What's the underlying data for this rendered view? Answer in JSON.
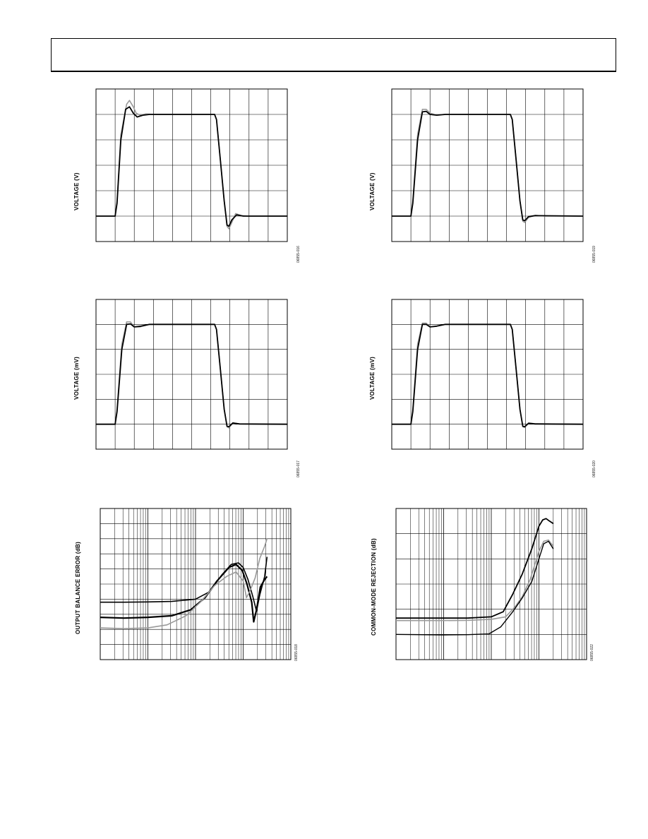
{
  "page": {
    "header_text": ""
  },
  "chart_data": [
    {
      "type": "line",
      "ylabel": "VOLTAGE (V)",
      "figure_id": "06855-016",
      "scale": "linear",
      "x_divisions": 10,
      "y_divisions": 6,
      "grid": true,
      "series": [
        {
          "color": "#9a9a9a",
          "width": 1.6,
          "values": [
            [
              0,
              1
            ],
            [
              1,
              1
            ],
            [
              1.1,
              1.6
            ],
            [
              1.3,
              4.2
            ],
            [
              1.6,
              5.4
            ],
            [
              1.75,
              5.55
            ],
            [
              1.95,
              5.3
            ],
            [
              2.1,
              5.05
            ],
            [
              2.3,
              4.97
            ],
            [
              2.6,
              5.02
            ],
            [
              3,
              5
            ],
            [
              6.2,
              5
            ],
            [
              6.3,
              4.8
            ],
            [
              6.5,
              3.2
            ],
            [
              6.7,
              1.6
            ],
            [
              6.85,
              0.6
            ],
            [
              6.95,
              0.5
            ],
            [
              7.1,
              0.75
            ],
            [
              7.3,
              1.1
            ],
            [
              7.6,
              1.02
            ],
            [
              8,
              1
            ],
            [
              10,
              1
            ]
          ]
        },
        {
          "color": "#000000",
          "width": 1.8,
          "values": [
            [
              0,
              1
            ],
            [
              1,
              1
            ],
            [
              1.1,
              1.5
            ],
            [
              1.3,
              4.0
            ],
            [
              1.55,
              5.2
            ],
            [
              1.75,
              5.3
            ],
            [
              1.95,
              5.05
            ],
            [
              2.15,
              4.9
            ],
            [
              2.45,
              4.97
            ],
            [
              2.8,
              5.0
            ],
            [
              6.2,
              5
            ],
            [
              6.3,
              4.8
            ],
            [
              6.5,
              3.2
            ],
            [
              6.7,
              1.6
            ],
            [
              6.85,
              0.65
            ],
            [
              6.95,
              0.6
            ],
            [
              7.1,
              0.85
            ],
            [
              7.35,
              1.05
            ],
            [
              7.7,
              1.0
            ],
            [
              10,
              1
            ]
          ]
        }
      ]
    },
    {
      "type": "line",
      "ylabel": "VOLTAGE (V)",
      "figure_id": "06855-019",
      "scale": "linear",
      "x_divisions": 10,
      "y_divisions": 6,
      "grid": true,
      "series": [
        {
          "color": "#9a9a9a",
          "width": 1.6,
          "values": [
            [
              0,
              1
            ],
            [
              1,
              1
            ],
            [
              1.1,
              1.6
            ],
            [
              1.35,
              4.2
            ],
            [
              1.6,
              5.2
            ],
            [
              1.8,
              5.2
            ],
            [
              2.0,
              5.05
            ],
            [
              2.3,
              4.98
            ],
            [
              2.8,
              5.0
            ],
            [
              6.2,
              5
            ],
            [
              6.3,
              4.8
            ],
            [
              6.5,
              3.2
            ],
            [
              6.7,
              1.6
            ],
            [
              6.85,
              0.8
            ],
            [
              6.95,
              0.75
            ],
            [
              7.15,
              0.95
            ],
            [
              7.5,
              1.03
            ],
            [
              8,
              1
            ],
            [
              10,
              1
            ]
          ]
        },
        {
          "color": "#000000",
          "width": 1.8,
          "values": [
            [
              0,
              1
            ],
            [
              1,
              1
            ],
            [
              1.1,
              1.5
            ],
            [
              1.35,
              4.0
            ],
            [
              1.6,
              5.1
            ],
            [
              1.8,
              5.12
            ],
            [
              2.0,
              5.0
            ],
            [
              2.35,
              4.97
            ],
            [
              2.8,
              5.0
            ],
            [
              6.2,
              5
            ],
            [
              6.3,
              4.8
            ],
            [
              6.5,
              3.2
            ],
            [
              6.7,
              1.6
            ],
            [
              6.85,
              0.85
            ],
            [
              6.95,
              0.82
            ],
            [
              7.15,
              0.98
            ],
            [
              7.5,
              1.02
            ],
            [
              10,
              1
            ]
          ]
        }
      ]
    },
    {
      "type": "line",
      "ylabel": "VOLTAGE (mV)",
      "figure_id": "06855-017",
      "scale": "linear",
      "x_divisions": 10,
      "y_divisions": 6,
      "grid": true,
      "series": [
        {
          "color": "#9a9a9a",
          "width": 1.6,
          "values": [
            [
              0,
              1
            ],
            [
              1,
              1
            ],
            [
              1.1,
              1.6
            ],
            [
              1.35,
              4.2
            ],
            [
              1.6,
              5.1
            ],
            [
              1.8,
              5.1
            ],
            [
              2.0,
              4.9
            ],
            [
              2.3,
              4.9
            ],
            [
              2.8,
              5.0
            ],
            [
              6.2,
              5
            ],
            [
              6.3,
              4.8
            ],
            [
              6.5,
              3.2
            ],
            [
              6.7,
              1.6
            ],
            [
              6.85,
              0.9
            ],
            [
              6.95,
              0.85
            ],
            [
              7.15,
              1.05
            ],
            [
              7.5,
              1.02
            ],
            [
              10,
              1
            ]
          ]
        },
        {
          "color": "#000000",
          "width": 1.8,
          "values": [
            [
              0,
              1
            ],
            [
              1,
              1
            ],
            [
              1.1,
              1.5
            ],
            [
              1.35,
              4.0
            ],
            [
              1.6,
              5.0
            ],
            [
              1.8,
              5.02
            ],
            [
              2.0,
              4.9
            ],
            [
              2.35,
              4.93
            ],
            [
              2.8,
              5.0
            ],
            [
              6.2,
              5
            ],
            [
              6.3,
              4.8
            ],
            [
              6.5,
              3.2
            ],
            [
              6.7,
              1.6
            ],
            [
              6.85,
              0.92
            ],
            [
              6.95,
              0.9
            ],
            [
              7.15,
              1.05
            ],
            [
              7.5,
              1.01
            ],
            [
              10,
              1
            ]
          ]
        }
      ]
    },
    {
      "type": "line",
      "ylabel": "VOLTAGE (mV)",
      "figure_id": "06855-020",
      "scale": "linear",
      "x_divisions": 10,
      "y_divisions": 6,
      "grid": true,
      "series": [
        {
          "color": "#9a9a9a",
          "width": 1.6,
          "values": [
            [
              0,
              1
            ],
            [
              1,
              1
            ],
            [
              1.1,
              1.6
            ],
            [
              1.35,
              4.2
            ],
            [
              1.6,
              5.05
            ],
            [
              1.8,
              5.05
            ],
            [
              2.0,
              4.9
            ],
            [
              2.3,
              4.92
            ],
            [
              2.8,
              5.0
            ],
            [
              6.2,
              5
            ],
            [
              6.3,
              4.8
            ],
            [
              6.5,
              3.2
            ],
            [
              6.7,
              1.6
            ],
            [
              6.85,
              0.9
            ],
            [
              6.95,
              0.87
            ],
            [
              7.15,
              1.05
            ],
            [
              7.5,
              1.02
            ],
            [
              10,
              1
            ]
          ]
        },
        {
          "color": "#000000",
          "width": 1.8,
          "values": [
            [
              0,
              1
            ],
            [
              1,
              1
            ],
            [
              1.1,
              1.5
            ],
            [
              1.35,
              4.0
            ],
            [
              1.6,
              5.0
            ],
            [
              1.8,
              5.0
            ],
            [
              2.0,
              4.9
            ],
            [
              2.35,
              4.93
            ],
            [
              2.8,
              5.0
            ],
            [
              6.2,
              5
            ],
            [
              6.3,
              4.8
            ],
            [
              6.5,
              3.2
            ],
            [
              6.7,
              1.6
            ],
            [
              6.85,
              0.92
            ],
            [
              6.95,
              0.9
            ],
            [
              7.15,
              1.04
            ],
            [
              7.5,
              1.01
            ],
            [
              10,
              1
            ]
          ]
        }
      ]
    },
    {
      "type": "line",
      "ylabel": "OUTPUT BALANCE ERROR (dB)",
      "figure_id": "06855-018",
      "scale": "log-x",
      "x_decades": 4,
      "y_divisions": 10,
      "grid": true,
      "series": [
        {
          "color": "#000000",
          "width": 1.6,
          "values": [
            [
              0,
              3.8
            ],
            [
              0.5,
              3.8
            ],
            [
              1,
              3.82
            ],
            [
              1.5,
              3.85
            ],
            [
              2.0,
              4.0
            ],
            [
              2.3,
              4.5
            ],
            [
              2.55,
              5.6
            ],
            [
              2.75,
              6.3
            ],
            [
              2.9,
              6.4
            ],
            [
              3.0,
              6.1
            ],
            [
              3.1,
              5.3
            ],
            [
              3.2,
              4.2
            ],
            [
              3.28,
              3.2
            ],
            [
              3.35,
              4.3
            ],
            [
              3.45,
              5.5
            ],
            [
              3.5,
              6.8
            ]
          ]
        },
        {
          "color": "#000000",
          "width": 2.2,
          "values": [
            [
              0,
              2.8
            ],
            [
              0.5,
              2.75
            ],
            [
              1.0,
              2.8
            ],
            [
              1.5,
              2.9
            ],
            [
              1.9,
              3.3
            ],
            [
              2.2,
              4.1
            ],
            [
              2.45,
              5.2
            ],
            [
              2.7,
              6.1
            ],
            [
              2.85,
              6.3
            ],
            [
              2.98,
              5.9
            ],
            [
              3.08,
              5.0
            ],
            [
              3.18,
              3.8
            ],
            [
              3.22,
              2.5
            ],
            [
              3.28,
              3.3
            ],
            [
              3.36,
              4.8
            ],
            [
              3.45,
              5.3
            ],
            [
              3.5,
              5.5
            ]
          ]
        },
        {
          "color": "#9a9a9a",
          "width": 1.6,
          "values": [
            [
              0,
              2.1
            ],
            [
              0.5,
              2.05
            ],
            [
              1.0,
              2.1
            ],
            [
              1.4,
              2.3
            ],
            [
              1.8,
              2.9
            ],
            [
              2.1,
              3.8
            ],
            [
              2.4,
              4.9
            ],
            [
              2.65,
              5.5
            ],
            [
              2.85,
              5.8
            ],
            [
              3.0,
              5.2
            ],
            [
              3.07,
              4.1
            ],
            [
              3.15,
              4.6
            ],
            [
              3.25,
              5.4
            ],
            [
              3.35,
              6.7
            ],
            [
              3.45,
              7.5
            ],
            [
              3.5,
              8.0
            ]
          ]
        }
      ]
    },
    {
      "type": "line",
      "ylabel": "COMMON-MODE REJECTION (dB)",
      "figure_id": "06855-022",
      "scale": "log-x",
      "x_decades": 4,
      "y_divisions": 6,
      "grid": true,
      "series": [
        {
          "color": "#000000",
          "width": 1.8,
          "values": [
            [
              0,
              1.65
            ],
            [
              1,
              1.65
            ],
            [
              1.5,
              1.65
            ],
            [
              2.0,
              1.7
            ],
            [
              2.25,
              1.9
            ],
            [
              2.45,
              2.6
            ],
            [
              2.65,
              3.4
            ],
            [
              2.85,
              4.4
            ],
            [
              3.0,
              5.3
            ],
            [
              3.08,
              5.55
            ],
            [
              3.15,
              5.6
            ],
            [
              3.22,
              5.5
            ],
            [
              3.3,
              5.4
            ]
          ]
        },
        {
          "color": "#9a9a9a",
          "width": 1.6,
          "values": [
            [
              0,
              1.55
            ],
            [
              1,
              1.55
            ],
            [
              1.5,
              1.56
            ],
            [
              2.0,
              1.6
            ],
            [
              2.3,
              1.7
            ],
            [
              2.5,
              2.1
            ],
            [
              2.65,
              2.5
            ],
            [
              2.82,
              3.2
            ],
            [
              3.0,
              4.3
            ],
            [
              3.1,
              4.7
            ],
            [
              3.2,
              4.75
            ],
            [
              3.3,
              4.5
            ]
          ]
        },
        {
          "color": "#000000",
          "width": 1.4,
          "values": [
            [
              0,
              1.0
            ],
            [
              1.0,
              0.98
            ],
            [
              1.5,
              0.99
            ],
            [
              1.95,
              1.02
            ],
            [
              2.2,
              1.3
            ],
            [
              2.45,
              1.9
            ],
            [
              2.65,
              2.45
            ],
            [
              2.85,
              3.1
            ],
            [
              3.0,
              4.0
            ],
            [
              3.1,
              4.6
            ],
            [
              3.2,
              4.7
            ],
            [
              3.3,
              4.4
            ]
          ]
        }
      ]
    }
  ]
}
